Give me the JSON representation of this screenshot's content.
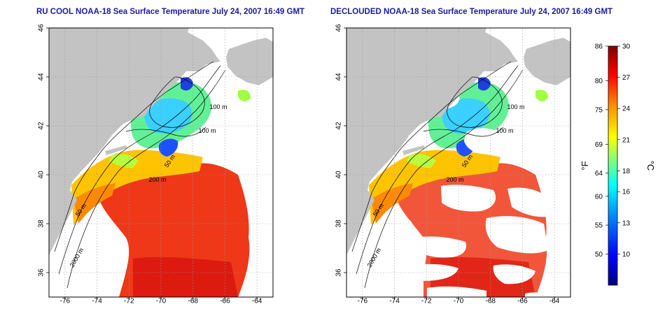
{
  "maps": [
    {
      "id": "left",
      "title": "RU COOL NOAA-18 Sea Surface Temperature July 24, 2007 16:49 GMT",
      "cloud_filtered": false
    },
    {
      "id": "right",
      "title": "DECLOUDED NOAA-18 Sea Surface Temperature July 24, 2007 16:49 GMT",
      "cloud_filtered": true
    }
  ],
  "axes": {
    "lon_ticks": [
      "-76",
      "-74",
      "-72",
      "-70",
      "-68",
      "-66",
      "-64"
    ],
    "lat_ticks": [
      "36",
      "38",
      "40",
      "42",
      "44",
      "46"
    ],
    "lon_range": [
      -77,
      -63
    ],
    "lat_range": [
      35,
      46
    ],
    "grid": "dotted"
  },
  "contour_labels": [
    "100 m",
    "100 m",
    "50 m",
    "200 m",
    "50 m",
    "2000 m"
  ],
  "colorbar": {
    "fahrenheit_ticks": [
      "86",
      "80",
      "75",
      "69",
      "64",
      "60",
      "55",
      "50"
    ],
    "celsius_ticks": [
      "30",
      "27",
      "24",
      "21",
      "18",
      "16",
      "13",
      "10"
    ],
    "fahrenheit_unit": "°F",
    "celsius_unit": "°C",
    "range_c": [
      7,
      30
    ],
    "colors": [
      "#00007f",
      "#0000ff",
      "#0080ff",
      "#00ffff",
      "#80ff80",
      "#ffff00",
      "#ff8000",
      "#ff0000",
      "#7f0000"
    ]
  }
}
